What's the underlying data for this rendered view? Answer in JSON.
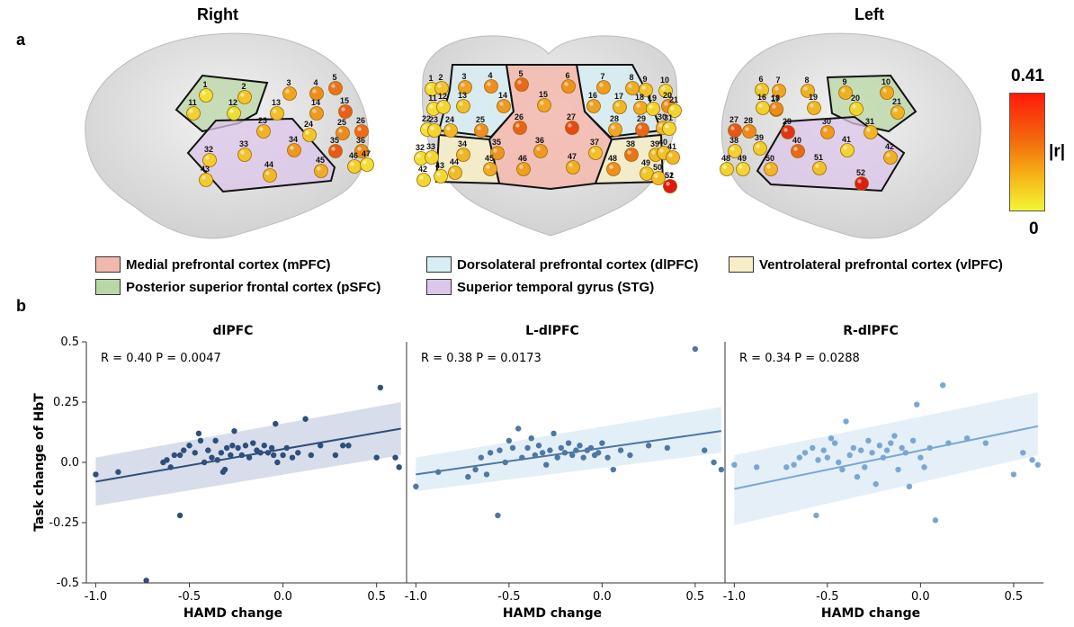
{
  "panel_a": {
    "letter": "a",
    "view_right": "Right",
    "view_left": "Left",
    "colorbar": {
      "max": "0.41",
      "min": "0",
      "label": "|r|"
    },
    "legend": [
      {
        "label": "Medial prefrontal cortex (mPFC)",
        "color": "#f3b8ad"
      },
      {
        "label": "Dorsolateral prefrontal cortex (dlPFC)",
        "color": "#d6eef4"
      },
      {
        "label": "Ventrolateral prefrontal cortex (vlPFC)",
        "color": "#f7eec8"
      },
      {
        "label": "Posterior superior frontal cortex (pSFC)",
        "color": "#b9d7a6"
      },
      {
        "label": "Superior temporal gyrus (STG)",
        "color": "#dcc6ea"
      }
    ],
    "channels_right": [
      "1",
      "2",
      "3",
      "4",
      "5",
      "11",
      "12",
      "13",
      "14",
      "15",
      "23",
      "24",
      "25",
      "26",
      "32",
      "33",
      "34",
      "35",
      "36",
      "43",
      "44",
      "45",
      "46",
      "47"
    ],
    "channels_front": [
      "1",
      "2",
      "3",
      "4",
      "5",
      "6",
      "7",
      "8",
      "9",
      "10",
      "11",
      "12",
      "13",
      "14",
      "15",
      "16",
      "17",
      "18",
      "19",
      "20",
      "21",
      "22",
      "23",
      "24",
      "25",
      "26",
      "27",
      "28",
      "29",
      "30",
      "31",
      "32",
      "33",
      "34",
      "35",
      "36",
      "37",
      "38",
      "39",
      "40",
      "41",
      "42",
      "43",
      "44",
      "45",
      "46",
      "47",
      "48",
      "49",
      "50",
      "51",
      "52"
    ],
    "channels_left": [
      "6",
      "7",
      "8",
      "9",
      "10",
      "16",
      "17",
      "18",
      "19",
      "20",
      "21",
      "27",
      "28",
      "29",
      "30",
      "31",
      "38",
      "39",
      "40",
      "41",
      "42",
      "48",
      "49",
      "50",
      "51",
      "52"
    ]
  },
  "panel_b": {
    "letter": "b",
    "ylabel": "Task change of HbT",
    "xlabel": "HAMD change"
  },
  "chart_data": [
    {
      "type": "scatter",
      "title": "dlPFC",
      "annotation": "R = 0.40 P = 0.0047",
      "xlabel": "HAMD change",
      "ylabel": "Task change of HbT",
      "xlim": [
        -1.05,
        0.66
      ],
      "ylim": [
        -0.5,
        0.5
      ],
      "xticks": [
        "-1.0",
        "-0.5",
        "0.0",
        "0.5"
      ],
      "yticks": [
        "0.5",
        "0.25",
        "0.0",
        "-0.25",
        "-0.5"
      ],
      "color": "#2e4f7a",
      "band_color": "#c9d2e3",
      "fit": {
        "x": [
          -1.0,
          0.63
        ],
        "y": [
          -0.08,
          0.14
        ],
        "ci_low": [
          -0.18,
          0.03
        ],
        "ci_high": [
          0.02,
          0.25
        ]
      },
      "points": [
        [
          -1.0,
          -0.05
        ],
        [
          -0.88,
          -0.04
        ],
        [
          -0.73,
          -0.49
        ],
        [
          -0.64,
          0.0
        ],
        [
          -0.62,
          0.01
        ],
        [
          -0.6,
          -0.02
        ],
        [
          -0.58,
          0.03
        ],
        [
          -0.55,
          -0.22
        ],
        [
          -0.55,
          0.03
        ],
        [
          -0.53,
          0.05
        ],
        [
          -0.5,
          0.07
        ],
        [
          -0.47,
          0.04
        ],
        [
          -0.45,
          0.12
        ],
        [
          -0.44,
          0.09
        ],
        [
          -0.42,
          0.0
        ],
        [
          -0.4,
          0.05
        ],
        [
          -0.38,
          0.02
        ],
        [
          -0.36,
          0.09
        ],
        [
          -0.35,
          0.01
        ],
        [
          -0.33,
          0.04
        ],
        [
          -0.32,
          -0.04
        ],
        [
          -0.31,
          -0.03
        ],
        [
          -0.3,
          0.06
        ],
        [
          -0.28,
          0.03
        ],
        [
          -0.27,
          0.07
        ],
        [
          -0.26,
          0.13
        ],
        [
          -0.24,
          0.06
        ],
        [
          -0.22,
          0.03
        ],
        [
          -0.2,
          0.07
        ],
        [
          -0.18,
          0.02
        ],
        [
          -0.16,
          0.08
        ],
        [
          -0.14,
          0.05
        ],
        [
          -0.12,
          0.04
        ],
        [
          -0.1,
          0.07
        ],
        [
          -0.08,
          0.04
        ],
        [
          -0.06,
          0.06
        ],
        [
          -0.05,
          0.03
        ],
        [
          -0.04,
          0.16
        ],
        [
          -0.03,
          0.0
        ],
        [
          0.0,
          0.03
        ],
        [
          0.02,
          0.06
        ],
        [
          0.05,
          0.02
        ],
        [
          0.08,
          0.04
        ],
        [
          0.12,
          0.18
        ],
        [
          0.15,
          0.03
        ],
        [
          0.2,
          0.07
        ],
        [
          0.28,
          0.03
        ],
        [
          0.32,
          0.07
        ],
        [
          0.35,
          0.07
        ],
        [
          0.5,
          0.02
        ],
        [
          0.52,
          0.31
        ],
        [
          0.6,
          0.02
        ],
        [
          0.62,
          -0.02
        ]
      ]
    },
    {
      "type": "scatter",
      "title": "L-dlPFC",
      "annotation": "R = 0.38 P = 0.0173",
      "xlabel": "HAMD change",
      "xlim": [
        -1.05,
        0.66
      ],
      "ylim": [
        -0.5,
        0.5
      ],
      "xticks": [
        "-1.0",
        "-0.5",
        "0.0",
        "0.5"
      ],
      "color": "#4e77a3",
      "band_color": "#d9eaf4",
      "fit": {
        "x": [
          -1.0,
          0.64
        ],
        "y": [
          -0.05,
          0.13
        ],
        "ci_low": [
          -0.12,
          0.04
        ],
        "ci_high": [
          0.02,
          0.23
        ]
      },
      "points": [
        [
          -1.0,
          -0.1
        ],
        [
          -0.88,
          -0.04
        ],
        [
          -0.72,
          -0.06
        ],
        [
          -0.68,
          -0.03
        ],
        [
          -0.65,
          0.02
        ],
        [
          -0.62,
          -0.05
        ],
        [
          -0.6,
          0.04
        ],
        [
          -0.56,
          -0.22
        ],
        [
          -0.55,
          0.05
        ],
        [
          -0.52,
          0.0
        ],
        [
          -0.5,
          0.09
        ],
        [
          -0.48,
          0.06
        ],
        [
          -0.45,
          0.14
        ],
        [
          -0.43,
          0.02
        ],
        [
          -0.4,
          0.06
        ],
        [
          -0.38,
          0.1
        ],
        [
          -0.36,
          0.03
        ],
        [
          -0.34,
          0.07
        ],
        [
          -0.32,
          0.04
        ],
        [
          -0.3,
          -0.01
        ],
        [
          -0.28,
          0.05
        ],
        [
          -0.26,
          0.12
        ],
        [
          -0.24,
          0.02
        ],
        [
          -0.22,
          0.06
        ],
        [
          -0.2,
          0.04
        ],
        [
          -0.18,
          0.08
        ],
        [
          -0.16,
          0.03
        ],
        [
          -0.14,
          0.05
        ],
        [
          -0.12,
          0.07
        ],
        [
          -0.1,
          0.02
        ],
        [
          -0.08,
          0.05
        ],
        [
          -0.06,
          0.06
        ],
        [
          -0.04,
          0.03
        ],
        [
          -0.02,
          0.04
        ],
        [
          0.0,
          0.08
        ],
        [
          0.03,
          0.02
        ],
        [
          0.06,
          -0.03
        ],
        [
          0.1,
          0.05
        ],
        [
          0.15,
          0.03
        ],
        [
          0.25,
          0.07
        ],
        [
          0.35,
          0.06
        ],
        [
          0.5,
          0.47
        ],
        [
          0.55,
          0.05
        ],
        [
          0.6,
          0.0
        ],
        [
          0.64,
          -0.03
        ]
      ]
    },
    {
      "type": "scatter",
      "title": "R-dlPFC",
      "annotation": "R = 0.34 P = 0.0288",
      "xlabel": "HAMD change",
      "xlim": [
        -1.05,
        0.66
      ],
      "ylim": [
        -0.5,
        0.5
      ],
      "xticks": [
        "-1.0",
        "-0.5",
        "0.0",
        "0.5"
      ],
      "color": "#7aa6d4",
      "band_color": "#dbeaf6",
      "fit": {
        "x": [
          -1.0,
          0.63
        ],
        "y": [
          -0.11,
          0.15
        ],
        "ci_low": [
          -0.26,
          0.03
        ],
        "ci_high": [
          0.03,
          0.29
        ]
      },
      "points": [
        [
          -1.0,
          -0.01
        ],
        [
          -0.88,
          -0.02
        ],
        [
          -0.72,
          -0.02
        ],
        [
          -0.68,
          -0.01
        ],
        [
          -0.65,
          0.02
        ],
        [
          -0.62,
          0.04
        ],
        [
          -0.58,
          0.06
        ],
        [
          -0.56,
          -0.22
        ],
        [
          -0.55,
          0.01
        ],
        [
          -0.52,
          0.05
        ],
        [
          -0.5,
          0.02
        ],
        [
          -0.48,
          0.1
        ],
        [
          -0.46,
          0.08
        ],
        [
          -0.44,
          0.0
        ],
        [
          -0.42,
          -0.03
        ],
        [
          -0.4,
          0.17
        ],
        [
          -0.38,
          0.03
        ],
        [
          -0.36,
          0.06
        ],
        [
          -0.34,
          -0.06
        ],
        [
          -0.32,
          0.05
        ],
        [
          -0.3,
          -0.02
        ],
        [
          -0.28,
          0.09
        ],
        [
          -0.26,
          0.04
        ],
        [
          -0.24,
          -0.09
        ],
        [
          -0.22,
          0.07
        ],
        [
          -0.2,
          0.02
        ],
        [
          -0.18,
          0.05
        ],
        [
          -0.16,
          0.08
        ],
        [
          -0.14,
          0.11
        ],
        [
          -0.12,
          -0.03
        ],
        [
          -0.1,
          0.06
        ],
        [
          -0.08,
          0.04
        ],
        [
          -0.06,
          -0.1
        ],
        [
          -0.04,
          0.09
        ],
        [
          -0.02,
          0.24
        ],
        [
          0.0,
          0.02
        ],
        [
          0.02,
          -0.02
        ],
        [
          0.05,
          0.06
        ],
        [
          0.08,
          -0.24
        ],
        [
          0.12,
          0.32
        ],
        [
          0.15,
          0.08
        ],
        [
          0.25,
          0.1
        ],
        [
          0.35,
          0.08
        ],
        [
          0.5,
          -0.05
        ],
        [
          0.55,
          0.04
        ],
        [
          0.6,
          0.01
        ],
        [
          0.63,
          -0.01
        ]
      ]
    }
  ]
}
